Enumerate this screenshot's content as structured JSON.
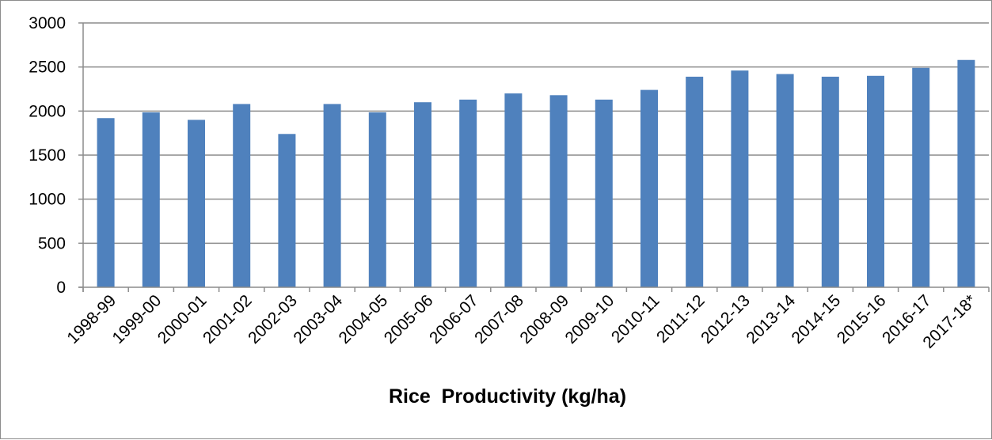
{
  "chart_data": {
    "type": "bar",
    "title": "",
    "xlabel": "Rice  Productivity (kg/ha)",
    "ylabel": "",
    "ylim": [
      0,
      3000
    ],
    "yticks": [
      0,
      500,
      1000,
      1500,
      2000,
      2500,
      3000
    ],
    "grid": true,
    "legend": "none",
    "categories": [
      "1998-99",
      "1999-00",
      "2000-01",
      "2001-02",
      "2002-03",
      "2003-04",
      "2004-05",
      "2005-06",
      "2006-07",
      "2007-08",
      "2008-09",
      "2009-10",
      "2010-11",
      "2011-12",
      "2012-13",
      "2013-14",
      "2014-15",
      "2015-16",
      "2016-17",
      "2017-18*"
    ],
    "values": [
      1920,
      1985,
      1900,
      2080,
      1740,
      2080,
      1985,
      2100,
      2130,
      2200,
      2180,
      2130,
      2240,
      2390,
      2460,
      2420,
      2390,
      2400,
      2490,
      2580
    ],
    "bar_color": "#4f81bd",
    "grid_color": "#8c8c8c"
  }
}
